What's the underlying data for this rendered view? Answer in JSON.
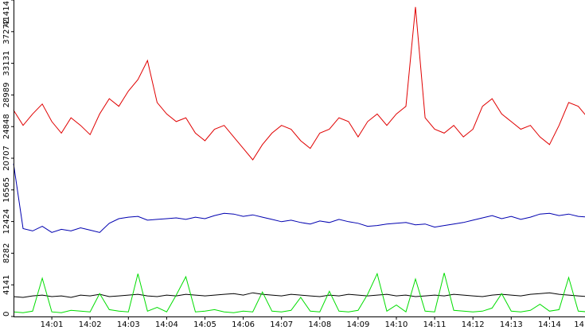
{
  "chart_data": {
    "type": "line",
    "categories": [
      null,
      null,
      null,
      null,
      "14:01",
      null,
      null,
      null,
      "14:02",
      null,
      null,
      null,
      "14:03",
      null,
      null,
      null,
      "14:04",
      null,
      null,
      null,
      "14:05",
      null,
      null,
      null,
      "14:06",
      null,
      null,
      null,
      "14:07",
      null,
      null,
      null,
      "14:08",
      null,
      null,
      null,
      "14:09",
      null,
      null,
      null,
      "14:10",
      null,
      null,
      null,
      "14:11",
      null,
      null,
      null,
      "14:12",
      null,
      null,
      null,
      "14:13",
      null,
      null,
      null,
      "14:14",
      null,
      null,
      null,
      "14"
    ],
    "series": [
      {
        "color": "#e00000",
        "values": [
          27000,
          25000,
          26500,
          27800,
          25500,
          24000,
          26000,
          25000,
          23800,
          26500,
          28500,
          27500,
          29500,
          31000,
          33500,
          28000,
          26500,
          25500,
          26000,
          24000,
          23000,
          24500,
          25000,
          23500,
          22000,
          20500,
          22500,
          24000,
          25000,
          24500,
          23000,
          22000,
          24000,
          24500,
          26000,
          25500,
          23500,
          25500,
          26500,
          25000,
          26500,
          27500,
          40500,
          26000,
          24500,
          24000,
          25000,
          23500,
          24500,
          27500,
          28500,
          26500,
          25500,
          24500,
          25000,
          23500,
          22500,
          25000,
          28000,
          27500,
          26000
        ]
      },
      {
        "color": "#0000b0",
        "values": [
          20000,
          11500,
          11200,
          11800,
          11000,
          11400,
          11200,
          11600,
          11300,
          11000,
          12200,
          12800,
          13000,
          13100,
          12600,
          12700,
          12800,
          12900,
          12700,
          13000,
          12800,
          13200,
          13500,
          13400,
          13100,
          13300,
          13000,
          12700,
          12400,
          12600,
          12300,
          12100,
          12500,
          12300,
          12700,
          12400,
          12200,
          11800,
          11900,
          12100,
          12200,
          12300,
          12000,
          12100,
          11700,
          11900,
          12100,
          12300,
          12600,
          12900,
          13200,
          12800,
          13100,
          12700,
          13000,
          13400,
          13500,
          13200,
          13400,
          13100,
          13000
        ]
      },
      {
        "color": "#000000",
        "values": [
          2600,
          2500,
          2700,
          2800,
          2600,
          2700,
          2500,
          2800,
          2700,
          2900,
          2600,
          2700,
          2800,
          2900,
          2700,
          2600,
          2800,
          2700,
          2900,
          2800,
          2700,
          2800,
          2900,
          3000,
          2800,
          3100,
          2900,
          2800,
          2700,
          2900,
          2800,
          2700,
          2600,
          2800,
          2700,
          2900,
          2800,
          2700,
          2800,
          2900,
          2700,
          2800,
          2600,
          2700,
          2800,
          2700,
          2900,
          2800,
          2700,
          2600,
          2800,
          2900,
          2800,
          2700,
          2900,
          3000,
          3100,
          2900,
          2800,
          2700,
          2600
        ]
      },
      {
        "color": "#00dd00",
        "values": [
          600,
          500,
          700,
          5000,
          600,
          500,
          800,
          700,
          600,
          3000,
          900,
          700,
          600,
          5600,
          700,
          1200,
          600,
          2800,
          5200,
          600,
          700,
          900,
          600,
          500,
          700,
          600,
          3200,
          700,
          600,
          800,
          2500,
          700,
          600,
          3300,
          700,
          600,
          800,
          2900,
          5600,
          700,
          1500,
          600,
          4900,
          700,
          600,
          5700,
          800,
          700,
          600,
          700,
          1100,
          3000,
          700,
          600,
          800,
          1600,
          700,
          900,
          5100,
          700,
          600
        ]
      }
    ],
    "ylim": [
      0,
      41414
    ],
    "yticks": [
      0,
      4141,
      8282,
      12424,
      16565,
      20707,
      24848,
      28989,
      33131,
      37272,
      41414
    ]
  }
}
